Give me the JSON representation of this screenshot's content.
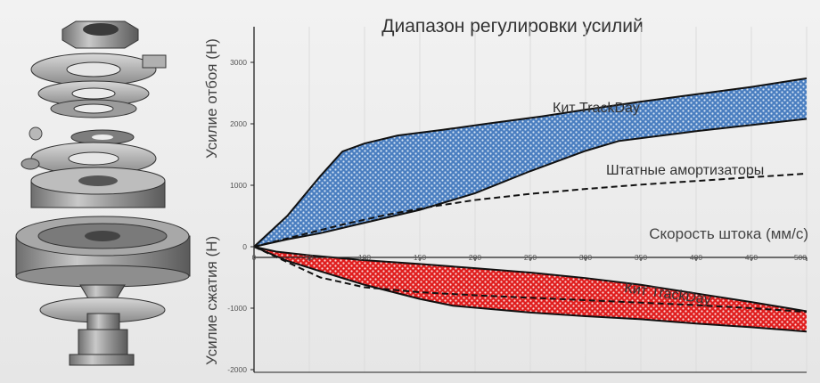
{
  "colors": {
    "background": "#ececec",
    "rebound_fill": "#4a7ec0",
    "compression_fill": "#e01e1e",
    "boundary": "#111111",
    "stock_line": "#111111",
    "grid": "#dcdcdc"
  },
  "left_image": "exploded-view of shock absorber valve assembly (gray 3D render)",
  "chart_data": {
    "type": "area",
    "title": "Диапазон регулировки усилий",
    "xlabel": "Скорость штока (мм/с)",
    "ylabel_top": "Усилие отбоя (Н)",
    "ylabel_bottom": "Усилие сжатия (Н)",
    "xlim": [
      0,
      500
    ],
    "ylim": [
      -2000,
      3300
    ],
    "x_ticks": [
      0,
      50,
      100,
      150,
      200,
      250,
      300,
      350,
      400,
      450,
      500
    ],
    "y_ticks": [
      3000,
      2000,
      1000,
      0,
      -1000,
      -2000
    ],
    "grid": "vertical",
    "bands": [
      {
        "name": "Кит TrackDay",
        "label": "Кит TrackDay",
        "side": "rebound",
        "upper": {
          "x": [
            0,
            30,
            60,
            80,
            100,
            130,
            170,
            210,
            260,
            300,
            350,
            400,
            450,
            500
          ],
          "y": [
            0,
            500,
            1150,
            1550,
            1680,
            1810,
            1900,
            2000,
            2120,
            2230,
            2360,
            2480,
            2600,
            2740
          ]
        },
        "lower": {
          "x": [
            0,
            30,
            60,
            100,
            150,
            200,
            250,
            300,
            330,
            400,
            450,
            500
          ],
          "y": [
            0,
            120,
            220,
            390,
            600,
            870,
            1230,
            1560,
            1720,
            1880,
            1980,
            2080
          ]
        }
      },
      {
        "name": "Кит TrackDay",
        "label": "Кит TrackDay",
        "side": "compression",
        "upper": {
          "x": [
            0,
            20,
            50,
            100,
            150,
            200,
            250,
            300,
            350,
            400,
            450,
            500
          ],
          "y": [
            0,
            -80,
            -140,
            -220,
            -280,
            -350,
            -420,
            -510,
            -620,
            -760,
            -900,
            -1050
          ]
        },
        "lower": {
          "x": [
            0,
            30,
            60,
            100,
            150,
            180,
            250,
            300,
            350,
            400,
            450,
            500
          ],
          "y": [
            0,
            -230,
            -400,
            -620,
            -850,
            -960,
            -1070,
            -1130,
            -1180,
            -1250,
            -1310,
            -1380
          ]
        }
      }
    ],
    "series": [
      {
        "name": "Штатные амортизаторы",
        "label": "Штатные амортизаторы",
        "style": "dashed",
        "side": "rebound",
        "x": [
          0,
          40,
          80,
          120,
          160,
          200,
          250,
          300,
          350,
          400,
          450,
          500
        ],
        "y": [
          0,
          180,
          360,
          520,
          650,
          760,
          860,
          940,
          1010,
          1070,
          1130,
          1190
        ]
      },
      {
        "name": "",
        "style": "dashed",
        "side": "compression",
        "x": [
          0,
          30,
          60,
          100,
          150,
          200,
          250,
          300,
          350,
          400,
          450,
          500
        ],
        "y": [
          0,
          -250,
          -500,
          -660,
          -740,
          -790,
          -830,
          -870,
          -910,
          -950,
          -1000,
          -1060
        ]
      }
    ]
  }
}
